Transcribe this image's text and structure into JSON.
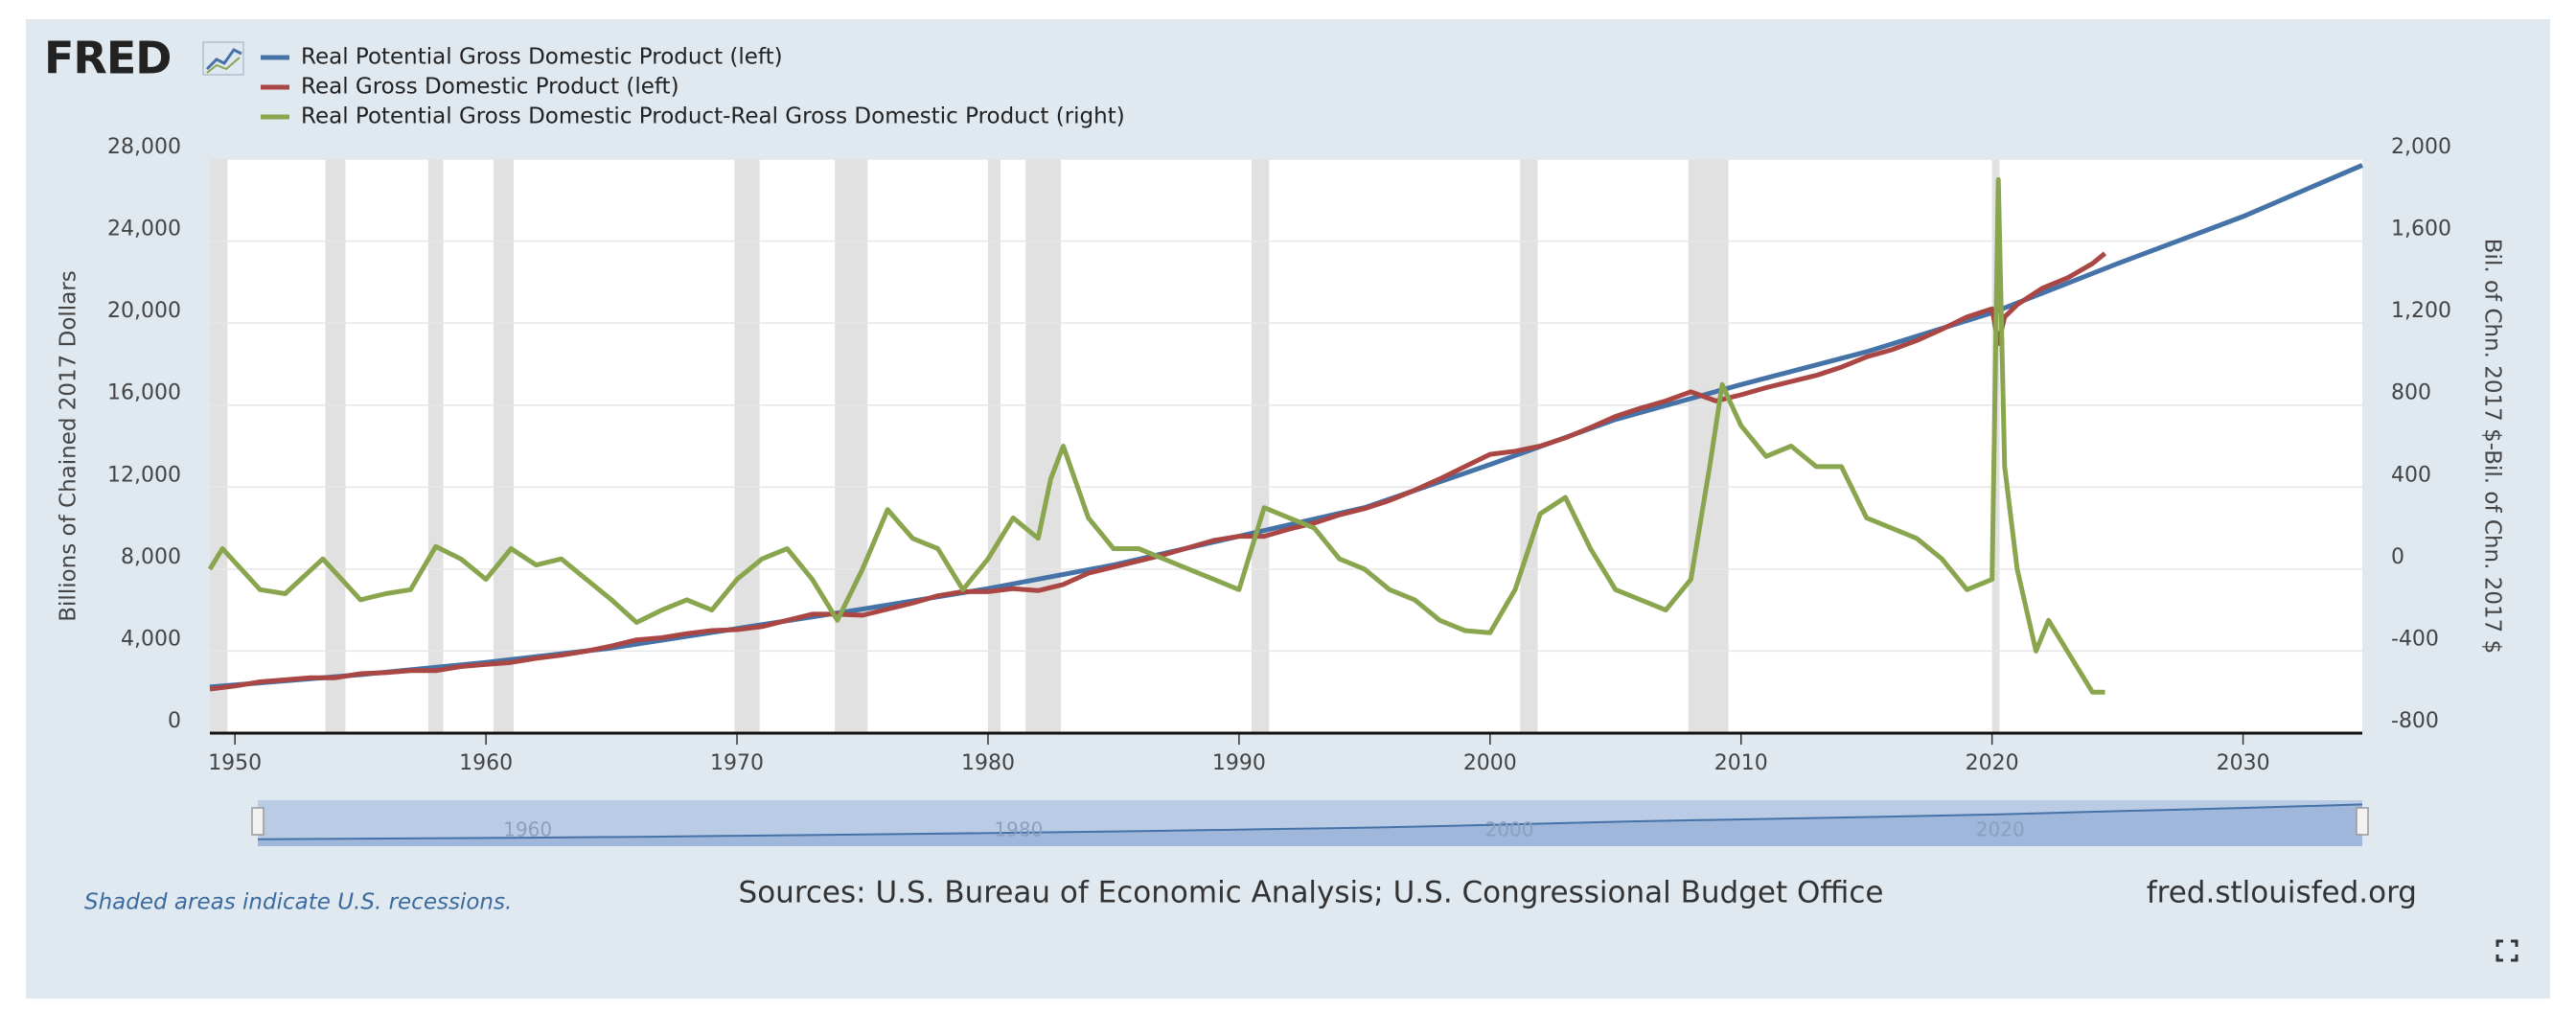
{
  "logo": "FRED",
  "chart_data": {
    "type": "line",
    "series": [
      {
        "name": "Real Potential Gross Domestic Product (left)",
        "color": "#4572a7",
        "axis": "y",
        "x": [
          1949,
          1955,
          1960,
          1965,
          1970,
          1975,
          1980,
          1985,
          1990,
          1995,
          2000,
          2005,
          2010,
          2015,
          2020,
          2025,
          2030,
          2034.75
        ],
        "values": [
          2250,
          2850,
          3450,
          4150,
          5100,
          6050,
          7050,
          8200,
          9600,
          11000,
          13100,
          15300,
          17000,
          18600,
          20500,
          22900,
          25200,
          27700
        ]
      },
      {
        "name": "Real Gross Domestic Product (left)",
        "color": "#aa4643",
        "axis": "y",
        "x": [
          1949,
          1950,
          1951,
          1952,
          1953,
          1954,
          1955,
          1956,
          1957,
          1958,
          1959,
          1960,
          1961,
          1962,
          1963,
          1964,
          1965,
          1966,
          1967,
          1968,
          1969,
          1970,
          1971,
          1972,
          1973,
          1974,
          1975,
          1976,
          1977,
          1978,
          1979,
          1980,
          1981,
          1982,
          1983,
          1984,
          1985,
          1986,
          1987,
          1988,
          1989,
          1990,
          1991,
          1992,
          1993,
          1994,
          1995,
          1996,
          1997,
          1998,
          1999,
          2000,
          2001,
          2002,
          2003,
          2004,
          2005,
          2006,
          2007,
          2008,
          2009,
          2010,
          2011,
          2012,
          2013,
          2014,
          2015,
          2016,
          2017,
          2018,
          2019,
          2020,
          2020.25,
          2020.5,
          2021,
          2022,
          2023,
          2024,
          2024.5
        ],
        "values": [
          2150,
          2300,
          2500,
          2600,
          2700,
          2700,
          2900,
          2950,
          3050,
          3050,
          3250,
          3350,
          3450,
          3650,
          3800,
          4000,
          4250,
          4550,
          4650,
          4850,
          5000,
          5050,
          5200,
          5500,
          5800,
          5800,
          5750,
          6050,
          6350,
          6700,
          6900,
          6900,
          7050,
          6950,
          7250,
          7800,
          8100,
          8400,
          8700,
          9050,
          9400,
          9600,
          9600,
          9950,
          10250,
          10650,
          10950,
          11350,
          11850,
          12400,
          13000,
          13600,
          13750,
          14000,
          14400,
          14900,
          15450,
          15850,
          16200,
          16650,
          16200,
          16500,
          16850,
          17150,
          17450,
          17850,
          18350,
          18700,
          19150,
          19700,
          20300,
          20700,
          19000,
          20300,
          20900,
          21700,
          22200,
          22900,
          23400
        ]
      },
      {
        "name": "Real Potential Gross Domestic Product-Real Gross Domestic Product (right)",
        "color": "#89a54e",
        "axis": "y2",
        "x": [
          1949,
          1949.5,
          1951,
          1952,
          1953.5,
          1955,
          1956,
          1957,
          1958,
          1959,
          1960,
          1961,
          1962,
          1963,
          1964,
          1965,
          1966,
          1967,
          1968,
          1969,
          1970,
          1971,
          1972,
          1973,
          1974,
          1975,
          1976,
          1977,
          1978,
          1979,
          1980,
          1981,
          1982,
          1982.5,
          1983,
          1984,
          1985,
          1986,
          1987,
          1988,
          1989,
          1990,
          1991,
          1992,
          1993,
          1994,
          1995,
          1996,
          1997,
          1998,
          1999,
          2000,
          2001,
          2002,
          2003,
          2004,
          2005,
          2006,
          2007,
          2008,
          2008.75,
          2009.25,
          2010,
          2011,
          2012,
          2013,
          2014,
          2015,
          2016,
          2017,
          2018,
          2019,
          2020,
          2020.25,
          2020.5,
          2021,
          2021.75,
          2022.25,
          2023,
          2023.5,
          2024,
          2024.5
        ],
        "values": [
          0,
          100,
          -100,
          -120,
          50,
          -150,
          -120,
          -100,
          110,
          50,
          -50,
          100,
          20,
          50,
          -50,
          -150,
          -260,
          -200,
          -150,
          -200,
          -50,
          50,
          100,
          -50,
          -250,
          0,
          290,
          150,
          100,
          -100,
          50,
          250,
          150,
          440,
          600,
          250,
          100,
          100,
          50,
          0,
          -50,
          -100,
          300,
          250,
          200,
          50,
          0,
          -100,
          -150,
          -250,
          -300,
          -310,
          -100,
          270,
          350,
          100,
          -100,
          -150,
          -200,
          -50,
          500,
          900,
          700,
          550,
          600,
          500,
          500,
          250,
          200,
          150,
          50,
          -100,
          -50,
          1900,
          500,
          0,
          -400,
          -250,
          -400,
          -500,
          -600,
          -600
        ]
      }
    ],
    "recessions": [
      [
        1949,
        1949.7
      ],
      [
        1953.6,
        1954.4
      ],
      [
        1957.7,
        1958.3
      ],
      [
        1960.3,
        1961.1
      ],
      [
        1969.9,
        1970.9
      ],
      [
        1973.9,
        1975.2
      ],
      [
        1980,
        1980.5
      ],
      [
        1981.5,
        1982.9
      ],
      [
        1990.5,
        1991.2
      ],
      [
        2001.2,
        2001.9
      ],
      [
        2007.9,
        2009.5
      ],
      [
        2020,
        2020.3
      ]
    ],
    "xlim": [
      1949,
      2034.75
    ],
    "xticks": [
      1950,
      1960,
      1970,
      1980,
      1990,
      2000,
      2010,
      2020,
      2030
    ],
    "ylim": [
      0,
      28000
    ],
    "yticks": [
      0,
      {
        "value": 4000,
        "label": "4,000"
      },
      {
        "value": 8000,
        "label": "8,000"
      },
      {
        "value": 12000,
        "label": "12,000"
      },
      {
        "value": 16000,
        "label": "16,000"
      },
      {
        "value": 20000,
        "label": "20,000"
      },
      {
        "value": 24000,
        "label": "24,000"
      },
      {
        "value": 28000,
        "label": "28,000"
      }
    ],
    "y2lim": [
      -800,
      2000
    ],
    "y2ticks": [
      -800,
      -400,
      0,
      400,
      800,
      {
        "value": 1200,
        "label": "1,200"
      },
      {
        "value": 1600,
        "label": "1,600"
      },
      {
        "value": 2000,
        "label": "2,000"
      }
    ],
    "ylabel": "Billions of Chained 2017 Dollars",
    "y2label": "Bil. of Chn. 2017 $-Bil. of Chn. 2017 $",
    "grid": true,
    "navigator_xticks": [
      1960,
      1980,
      2000,
      2020
    ],
    "note": "Shaded areas indicate U.S. recessions.",
    "source": "Sources: U.S. Bureau of Economic Analysis; U.S. Congressional Budget Office",
    "site": "fred.stlouisfed.org"
  }
}
